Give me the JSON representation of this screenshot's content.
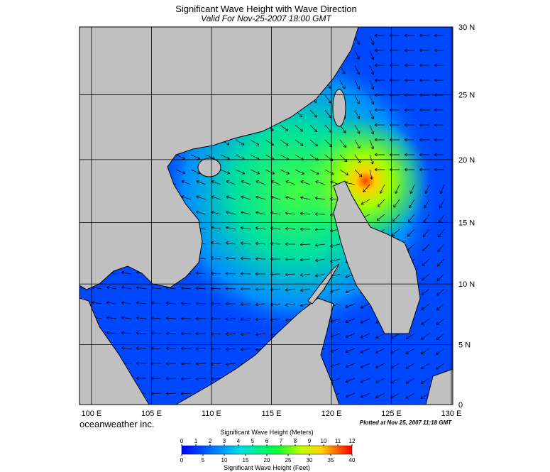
{
  "map": {
    "title": "Significant Wave Height with Wave Direction",
    "subtitle": "Valid For Nov-25-2007 18:00 GMT",
    "lon_ticks": [
      {
        "value": 100,
        "label": "100 E"
      },
      {
        "value": 105,
        "label": "105 E"
      },
      {
        "value": 110,
        "label": "110 E"
      },
      {
        "value": 115,
        "label": "115 E"
      },
      {
        "value": 120,
        "label": "120 E"
      },
      {
        "value": 125,
        "label": "125 E"
      },
      {
        "value": 130,
        "label": "130 E"
      }
    ],
    "lat_ticks": [
      {
        "value": 30,
        "label": "30 N"
      },
      {
        "value": 25,
        "label": "25 N"
      },
      {
        "value": 20,
        "label": "20 N"
      },
      {
        "value": 15,
        "label": "15 N"
      },
      {
        "value": 10,
        "label": "10 N"
      },
      {
        "value": 5,
        "label": "5 N"
      },
      0
    ],
    "brand": "oceanweather inc.",
    "plotted": "Plotted at Nov 25, 2007 11:18 GMT",
    "colorbar": {
      "meters_label": "Significant Wave Height (Meters)",
      "meters_lim": [
        0,
        12
      ],
      "meters_ticks": [
        0,
        1,
        2,
        3,
        4,
        5,
        6,
        7,
        8,
        9,
        10,
        11,
        12
      ],
      "feet_label": "Significant Wave Height (Feet)",
      "feet_lim": [
        0,
        40
      ],
      "feet_ticks": [
        0,
        5,
        10,
        15,
        20,
        25,
        30,
        35,
        40
      ]
    }
  }
}
